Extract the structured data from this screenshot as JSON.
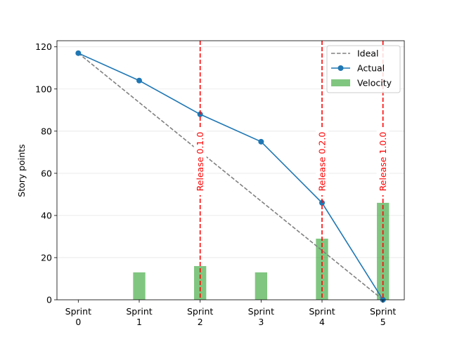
{
  "chart_data": {
    "type": "line",
    "categories": [
      "Sprint\n0",
      "Sprint\n1",
      "Sprint\n2",
      "Sprint\n3",
      "Sprint\n4",
      "Sprint\n5"
    ],
    "x": [
      0,
      1,
      2,
      3,
      4,
      5
    ],
    "series": [
      {
        "name": "Ideal",
        "type": "line",
        "style": "dashed",
        "color": "#808080",
        "values": [
          117,
          93.6,
          70.2,
          46.8,
          23.4,
          0
        ]
      },
      {
        "name": "Actual",
        "type": "line",
        "marker": "circle",
        "color": "#1f77b4",
        "values": [
          117,
          104,
          88,
          75,
          46,
          0
        ]
      },
      {
        "name": "Velocity",
        "type": "bar",
        "color": "#2ca02c",
        "opacity": 0.6,
        "values": [
          0,
          13,
          16,
          13,
          29,
          46
        ]
      }
    ],
    "annotations": [
      {
        "x": 2,
        "label": "Release 0.1.0",
        "color": "#ff0000"
      },
      {
        "x": 4,
        "label": "Release 0.2.0",
        "color": "#ff0000"
      },
      {
        "x": 5,
        "label": "Release 1.0.0",
        "color": "#ff0000"
      }
    ],
    "xlabel": "",
    "ylabel": "Story points",
    "yticks": [
      0,
      20,
      40,
      60,
      80,
      100,
      120
    ],
    "ylim": [
      0,
      122.9
    ],
    "xlim": [
      -0.35,
      5.35
    ],
    "grid": "horizontal",
    "legend_position": "top-right"
  }
}
